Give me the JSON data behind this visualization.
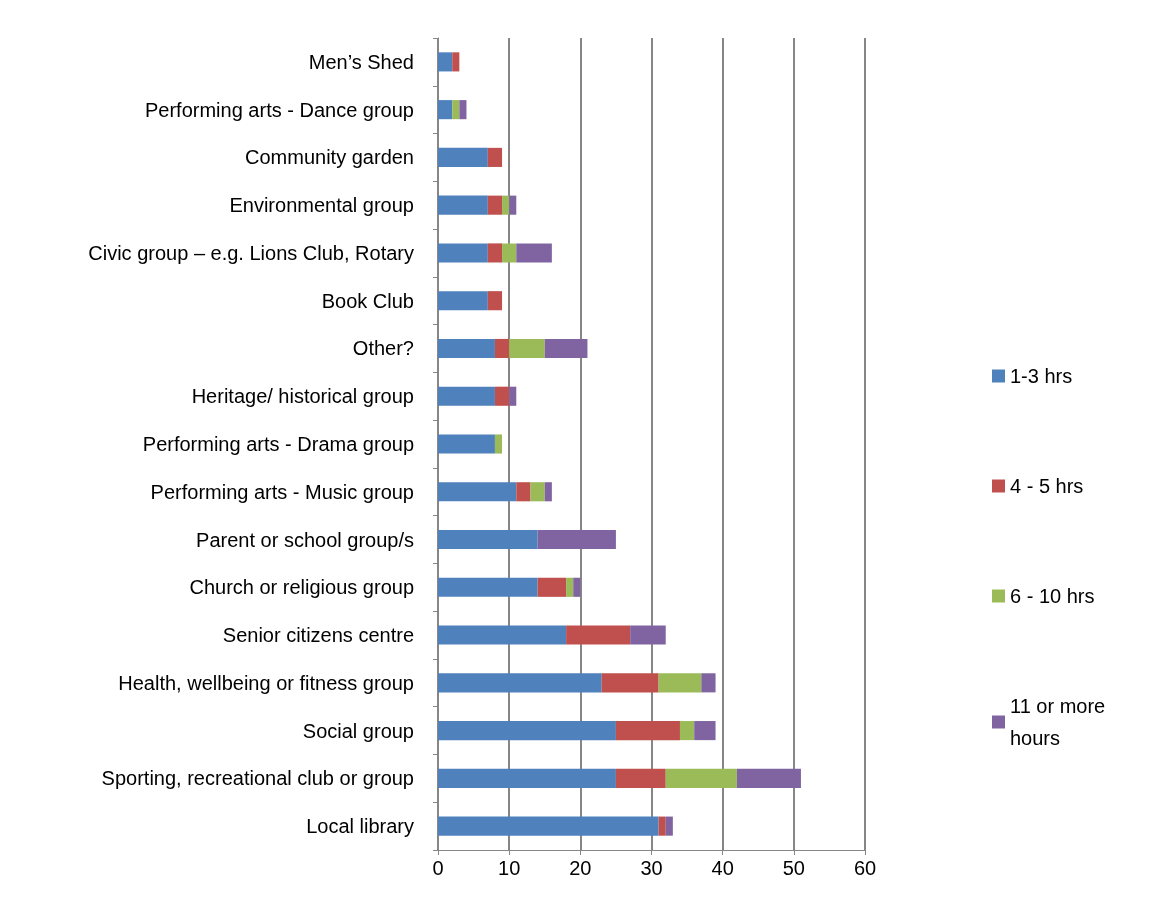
{
  "chart_data": {
    "type": "bar",
    "orientation": "horizontal",
    "stacked": true,
    "categories": [
      "Men’s Shed",
      "Performing arts - Dance group",
      "Community garden",
      "Environmental group",
      "Civic group – e.g. Lions Club, Rotary",
      "Book Club",
      "Other?",
      "Heritage/ historical group",
      "Performing arts - Drama group",
      "Performing arts - Music group",
      "Parent or school group/s",
      "Church or religious group",
      "Senior citizens centre",
      "Health, wellbeing or fitness group",
      "Social group",
      "Sporting, recreational club or group",
      "Local library"
    ],
    "series": [
      {
        "name": "1-3 hrs",
        "color": "#4f81bd",
        "values": [
          2,
          2,
          7,
          7,
          7,
          7,
          8,
          8,
          8,
          11,
          14,
          14,
          18,
          23,
          25,
          25,
          31
        ]
      },
      {
        "name": "4 - 5 hrs",
        "color": "#c0504d",
        "values": [
          1,
          0,
          2,
          2,
          2,
          2,
          2,
          2,
          0,
          2,
          0,
          4,
          9,
          8,
          9,
          7,
          1
        ]
      },
      {
        "name": "6 - 10 hrs",
        "color": "#9bbb59",
        "values": [
          0,
          1,
          0,
          1,
          2,
          0,
          5,
          0,
          1,
          2,
          0,
          1,
          0,
          6,
          2,
          10,
          0
        ]
      },
      {
        "name": "11 or more hours",
        "color": "#8064a2",
        "values": [
          0,
          1,
          0,
          1,
          5,
          0,
          6,
          1,
          0,
          1,
          11,
          1,
          5,
          2,
          3,
          9,
          1
        ]
      }
    ],
    "xlim": [
      0,
      60
    ],
    "xticks": [
      0,
      10,
      20,
      30,
      40,
      50,
      60
    ],
    "grid": "x",
    "legend": "right"
  }
}
